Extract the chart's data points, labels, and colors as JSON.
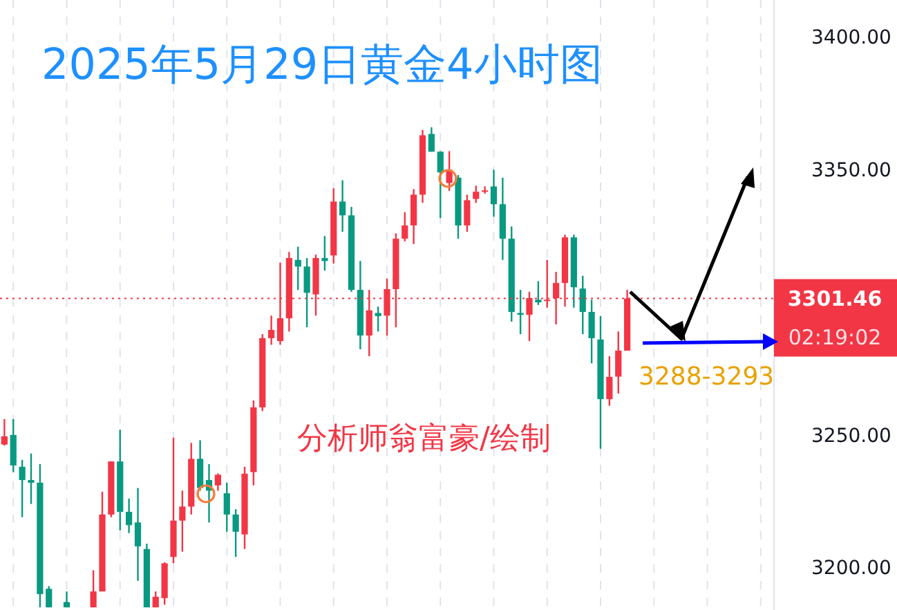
{
  "chart_data": {
    "type": "candlestick",
    "title": "2025年5月29日黄金4小时图",
    "categories": [
      null,
      null,
      null,
      null,
      null,
      null,
      null,
      null,
      null,
      null,
      null,
      null,
      null,
      null,
      null,
      null,
      null,
      null,
      null,
      null,
      null,
      null,
      null,
      null,
      null,
      null,
      null,
      null,
      null,
      null,
      null,
      null,
      null,
      null,
      null,
      null,
      null,
      null,
      null,
      null,
      null,
      null,
      null,
      null,
      null,
      null,
      null,
      null,
      null,
      null,
      null,
      null,
      null,
      null,
      null,
      null,
      null,
      null,
      null,
      null,
      null,
      null,
      null,
      null,
      null,
      null,
      null,
      null,
      null,
      null,
      null,
      null,
      null,
      null,
      null,
      null,
      null,
      null,
      null,
      null,
      null,
      null,
      null,
      null,
      null,
      null,
      null
    ],
    "ohlc": [
      [
        3246.4,
        3256,
        3246,
        3249.5
      ],
      [
        3250,
        3256,
        3236,
        3238.5
      ],
      [
        3238,
        3240.6,
        3219,
        3233
      ],
      [
        3233,
        3243,
        3224,
        3232
      ],
      [
        3232,
        3239,
        3185,
        3190
      ],
      [
        3192,
        3193,
        3185,
        3185
      ],
      null,
      [
        3187,
        3191,
        3185,
        3185
      ],
      null,
      null,
      [
        3185,
        3199,
        3185,
        3191
      ],
      [
        3191,
        3228.6,
        3191,
        3220
      ],
      [
        3220,
        3240,
        3219,
        3240
      ],
      [
        3240,
        3252,
        3214,
        3221
      ],
      [
        3221,
        3226,
        3213,
        3216
      ],
      [
        3217,
        3230,
        3195,
        3208
      ],
      [
        3207,
        3209,
        3185,
        3185
      ],
      [
        3185,
        3191,
        3185,
        3189
      ],
      [
        3188.5,
        3202,
        3186,
        3201.6
      ],
      [
        3204,
        3249,
        3201.6,
        3217.7
      ],
      [
        3217.7,
        3229,
        3206,
        3223
      ],
      [
        3223,
        3247,
        3220,
        3241
      ],
      [
        3241,
        3248,
        3229,
        3230
      ],
      [
        3233,
        3239,
        3217,
        3229
      ],
      [
        3231,
        3235.5,
        3229,
        3235
      ],
      [
        3228,
        3232,
        3213.5,
        3220
      ],
      [
        3220,
        3222,
        3204,
        3213.5
      ],
      [
        3212.5,
        3238,
        3207,
        3235.4
      ],
      [
        3236,
        3263,
        3231,
        3260.4
      ],
      [
        3260.4,
        3288,
        3259,
        3286.5
      ],
      [
        3286.5,
        3295,
        3284,
        3289.6
      ],
      [
        3285.4,
        3315,
        3284,
        3294
      ],
      [
        3294,
        3319,
        3289,
        3316.7
      ],
      [
        3316,
        3321,
        3304.7,
        3313.5
      ],
      [
        3313.5,
        3316.7,
        3290.6,
        3303.6
      ],
      [
        3303,
        3318,
        3295,
        3316.7
      ],
      [
        3316.7,
        3325,
        3312,
        3315.6
      ],
      [
        3317.7,
        3343,
        3314.6,
        3338
      ],
      [
        3338,
        3346,
        3326.6,
        3332.8
      ],
      [
        3332.8,
        3336,
        3304,
        3304.7
      ],
      [
        3304.7,
        3315.6,
        3282.3,
        3287.5
      ],
      [
        3287.5,
        3304.7,
        3279.7,
        3297
      ],
      [
        3296,
        3298.4,
        3289,
        3294.8
      ],
      [
        3295,
        3309,
        3287.5,
        3305
      ],
      [
        3305,
        3326,
        3290.6,
        3324
      ],
      [
        3324,
        3334,
        3323,
        3329
      ],
      [
        3329,
        3342.7,
        3322,
        3340.6
      ],
      [
        3340.6,
        3365,
        3337.5,
        3363
      ],
      [
        3363.5,
        3366,
        3356.8,
        3356.8
      ],
      [
        3356.8,
        3357,
        3331.8,
        3349
      ],
      [
        3345,
        3357,
        3342,
        3350
      ],
      [
        3347,
        3348,
        3324,
        3329
      ],
      [
        3329,
        3340.6,
        3326.6,
        3338.5
      ],
      [
        3339,
        3344,
        3337.5,
        3341.7
      ],
      [
        3341.7,
        3343.7,
        3341,
        3342.2
      ],
      [
        3343.7,
        3350,
        3332.3,
        3337
      ],
      [
        3337,
        3347,
        3316,
        3324
      ],
      [
        3324,
        3328.6,
        3292.7,
        3296.4
      ],
      [
        3296,
        3304.7,
        3288,
        3295.3
      ],
      [
        3295.3,
        3304,
        3285.4,
        3301.6
      ],
      [
        3301,
        3308,
        3299,
        3300
      ],
      [
        3300.5,
        3316,
        3298,
        3301
      ],
      [
        3301.6,
        3311.5,
        3291.7,
        3307.3
      ],
      [
        3307.3,
        3325.5,
        3298.4,
        3324.5
      ],
      [
        3324.5,
        3325.5,
        3298,
        3305.7
      ],
      [
        3305.2,
        3310,
        3288,
        3296.4
      ],
      [
        3296.4,
        3301,
        3277,
        3286.5
      ],
      [
        3286,
        3294.8,
        3244.8,
        3263.5
      ],
      [
        3263.5,
        3279.7,
        3261,
        3271.9
      ],
      [
        3272,
        3289,
        3265.6,
        3281.8
      ],
      [
        3281.8,
        3304.7,
        3281.8,
        3301.46
      ],
      null,
      null,
      null,
      null,
      null,
      null,
      null,
      null,
      null,
      null,
      null,
      null,
      null,
      null,
      null,
      null
    ],
    "grid": "x",
    "colors": [
      "#f23645",
      "#089981",
      "#089981",
      "#089981",
      "#089981",
      "#089981",
      null,
      "#089981",
      null,
      null,
      "#f23645",
      "#f23645",
      "#f23645",
      "#089981",
      "#089981",
      "#089981",
      "#089981",
      "#f23645",
      "#f23645",
      "#f23645",
      "#f23645",
      "#f23645",
      "#089981",
      "#089981",
      "#f23645",
      "#089981",
      "#089981",
      "#f23645",
      "#f23645",
      "#f23645",
      "#f23645",
      "#f23645",
      "#f23645",
      "#089981",
      "#089981",
      "#f23645",
      "#089981",
      "#f23645",
      "#089981",
      "#089981",
      "#089981",
      "#f23645",
      "#089981",
      "#f23645",
      "#f23645",
      "#f23645",
      "#f23645",
      "#f23645",
      "#089981",
      "#089981",
      "#f23645",
      "#089981",
      "#f23645",
      "#f23645",
      "#f23645",
      "#089981",
      "#089981",
      "#089981",
      "#089981",
      "#f23645",
      "#089981",
      "#f23645",
      "#f23645",
      "#f23645",
      "#089981",
      "#089981",
      "#089981",
      "#089981",
      "#f23645",
      "#f23645",
      "#f23645",
      null,
      null,
      null,
      null,
      null,
      null,
      null,
      null,
      null,
      null,
      null,
      null,
      null,
      null,
      null,
      null
    ],
    "ylim": [
      3184,
      3414
    ],
    "yticks": [
      {
        "value": 3200,
        "label": "3200.00"
      },
      {
        "value": 3250,
        "label": "3250.00"
      },
      {
        "value": 3350,
        "label": "3350.00"
      },
      {
        "value": 3400,
        "label": "3400.00"
      }
    ],
    "ref_lines": [
      {
        "axis": "y",
        "value": 3301.46,
        "label": "3301.46",
        "color": "#f23645",
        "line_style": "dotted"
      }
    ],
    "annotations": [
      "分析师翁富豪/绘制",
      "3288-3293",
      "02:19:02"
    ]
  }
}
